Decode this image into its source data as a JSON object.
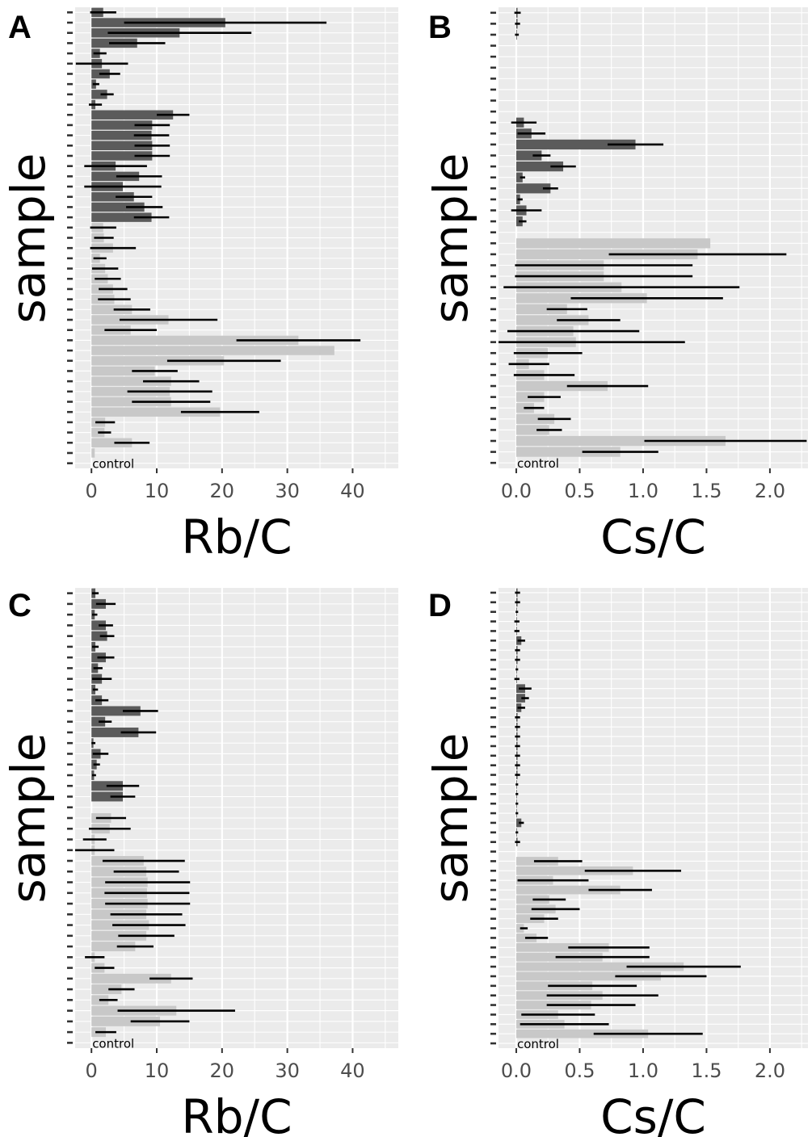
{
  "chart_data": [
    {
      "type": "bar",
      "panel_label": "A",
      "xlabel": "Rb/C",
      "ylabel": "sample",
      "xlim": [
        -2.5,
        47
      ],
      "xticks": [
        0,
        10,
        20,
        30,
        40
      ],
      "xtick_labels": [
        "0",
        "10",
        "20",
        "30",
        "40"
      ],
      "control_label": "control",
      "grid": true,
      "colors": {
        "dark": "#5b5b5b",
        "light": "#c8c8c8",
        "error": "#000000",
        "panel_bg": "#ebebeb",
        "grid": "#ffffff"
      },
      "series": [
        {
          "name": "dark",
          "values": [
            1.8,
            20.5,
            13.5,
            7.0,
            1.3,
            1.6,
            2.8,
            0.7,
            2.4,
            0.6,
            12.5,
            9.3,
            9.2,
            9.3,
            9.3,
            3.7,
            7.3,
            4.8,
            6.5,
            8.1,
            9.2
          ],
          "errors": [
            2.0,
            15.5,
            11.0,
            4.3,
            1.0,
            4.0,
            1.6,
            0.5,
            1.0,
            1.0,
            2.5,
            2.7,
            2.7,
            2.7,
            2.7,
            4.8,
            3.5,
            5.9,
            2.8,
            2.8,
            2.7
          ]
        },
        {
          "name": "light",
          "values": [
            1.8,
            1.9,
            3.3,
            1.3,
            2.1,
            2.5,
            3.3,
            3.5,
            6.2,
            11.8,
            6.0,
            31.7,
            37.2,
            20.3,
            9.7,
            12.2,
            12.0,
            12.2,
            19.7,
            2.1,
            2.0,
            6.2,
            0.5
          ],
          "errors": [
            2.0,
            1.5,
            3.5,
            1.0,
            2.0,
            2.0,
            2.2,
            2.5,
            2.8,
            7.5,
            4.0,
            9.5,
            0,
            8.7,
            3.5,
            4.3,
            6.5,
            6.0,
            6.0,
            1.5,
            1.0,
            2.7,
            0
          ]
        }
      ]
    },
    {
      "type": "bar",
      "panel_label": "B",
      "xlabel": "Cs/C",
      "ylabel": "sample",
      "xlim": [
        -0.14,
        2.3
      ],
      "xticks": [
        0,
        0.5,
        1.0,
        1.5,
        2.0
      ],
      "xtick_labels": [
        "0.0",
        "0.5",
        "1.0",
        "1.5",
        "2.0"
      ],
      "control_label": "control",
      "grid": true,
      "colors": {
        "dark": "#5b5b5b",
        "light": "#c8c8c8",
        "error": "#000000",
        "panel_bg": "#ebebeb",
        "grid": "#ffffff"
      },
      "series": [
        {
          "name": "dark",
          "values": [
            0.01,
            0.01,
            0.005,
            0,
            0,
            0,
            0,
            0,
            0,
            0,
            0.06,
            0.12,
            0.94,
            0.2,
            0.37,
            0.05,
            0.27,
            0.03,
            0.08,
            0.05,
            0
          ],
          "errors": [
            0.025,
            0.02,
            0.015,
            0,
            0,
            0,
            0,
            0,
            0,
            0,
            0.1,
            0.11,
            0.22,
            0.07,
            0.1,
            0.02,
            0.06,
            0.02,
            0.12,
            0.03,
            0
          ]
        },
        {
          "name": "light",
          "values": [
            1.53,
            1.43,
            0.69,
            0.69,
            0.83,
            1.03,
            0.4,
            0.57,
            0.45,
            0.47,
            0.25,
            0.1,
            0.22,
            0.72,
            0.22,
            0.14,
            0.3,
            0.26,
            1.65,
            0.82
          ],
          "errors": [
            0,
            0.7,
            0.7,
            0.7,
            0.93,
            0.6,
            0.16,
            0.25,
            0.52,
            0.86,
            0.27,
            0.16,
            0.24,
            0.32,
            0.13,
            0.08,
            0.13,
            0.1,
            0.64,
            0.3
          ]
        }
      ]
    },
    {
      "type": "bar",
      "panel_label": "C",
      "xlabel": "Rb/C",
      "ylabel": "sample",
      "xlim": [
        -2.5,
        47
      ],
      "xticks": [
        0,
        10,
        20,
        30,
        40
      ],
      "xtick_labels": [
        "0",
        "10",
        "20",
        "30",
        "40"
      ],
      "control_label": "control",
      "grid": true,
      "colors": {
        "dark": "#5b5b5b",
        "light": "#c8c8c8",
        "error": "#000000",
        "panel_bg": "#ebebeb",
        "grid": "#ffffff"
      },
      "series": [
        {
          "name": "dark",
          "values": [
            0.6,
            2.2,
            0.5,
            2.2,
            2.4,
            0.6,
            2.2,
            1.0,
            1.6,
            0.6,
            1.6,
            7.5,
            2.1,
            7.2,
            0.3,
            1.4,
            0.8,
            0.4,
            4.8,
            4.8,
            0
          ],
          "errors": [
            0.5,
            1.5,
            0.4,
            1.1,
            1.1,
            0.5,
            1.3,
            0.7,
            1.5,
            0.4,
            1.0,
            2.7,
            1.0,
            2.7,
            0.3,
            1.2,
            0.5,
            0.3,
            2.5,
            1.9,
            0
          ]
        },
        {
          "name": "light",
          "values": [
            3.0,
            2.8,
            0.5,
            0.5,
            8.0,
            8.4,
            8.6,
            8.5,
            8.6,
            8.4,
            8.8,
            8.4,
            6.7,
            0.5,
            2.0,
            12.2,
            4.6,
            2.6,
            13.0,
            10.5,
            2.2
          ],
          "errors": [
            2.3,
            3.2,
            1.8,
            3.0,
            6.3,
            5.0,
            6.5,
            6.5,
            6.5,
            5.5,
            5.6,
            4.3,
            2.8,
            1.5,
            1.5,
            3.3,
            2.0,
            1.4,
            9.0,
            4.5,
            1.6
          ]
        }
      ]
    },
    {
      "type": "bar",
      "panel_label": "D",
      "xlabel": "Cs/C",
      "ylabel": "sample",
      "xlim": [
        -0.14,
        2.3
      ],
      "xticks": [
        0,
        0.5,
        1.0,
        1.5,
        2.0
      ],
      "xtick_labels": [
        "0.0",
        "0.5",
        "1.0",
        "1.5",
        "2.0"
      ],
      "control_label": "control",
      "grid": true,
      "colors": {
        "dark": "#5b5b5b",
        "light": "#c8c8c8",
        "error": "#000000",
        "panel_bg": "#ebebeb",
        "grid": "#ffffff"
      },
      "series": [
        {
          "name": "dark",
          "values": [
            0.01,
            0.01,
            0.005,
            0.005,
            0.005,
            0.04,
            0.01,
            0.01,
            0.005,
            0.005,
            0.07,
            0.07,
            0.04,
            0.01,
            0.01,
            0.01,
            0.01,
            0.01,
            0.01,
            0.01,
            0.005,
            0.005,
            0.005,
            0.005,
            0.04,
            0.005,
            0.01,
            0
          ],
          "errors": [
            0.02,
            0.02,
            0.01,
            0.02,
            0.02,
            0.03,
            0.02,
            0.02,
            0.01,
            0.02,
            0.05,
            0.03,
            0.03,
            0.02,
            0.02,
            0.02,
            0.02,
            0.02,
            0.02,
            0.02,
            0.01,
            0.01,
            0.01,
            0.01,
            0.02,
            0.01,
            0.02,
            0
          ]
        },
        {
          "name": "light",
          "values": [
            0.33,
            0.92,
            0.29,
            0.82,
            0.26,
            0.31,
            0.22,
            0.06,
            0.16,
            0.73,
            0.68,
            1.32,
            1.14,
            0.6,
            0.68,
            0.59,
            0.33,
            0.38,
            1.04
          ],
          "errors": [
            0.19,
            0.38,
            0.28,
            0.25,
            0.13,
            0.19,
            0.11,
            0.03,
            0.09,
            0.32,
            0.37,
            0.45,
            0.36,
            0.35,
            0.44,
            0.35,
            0.29,
            0.35,
            0.43
          ]
        }
      ]
    }
  ]
}
